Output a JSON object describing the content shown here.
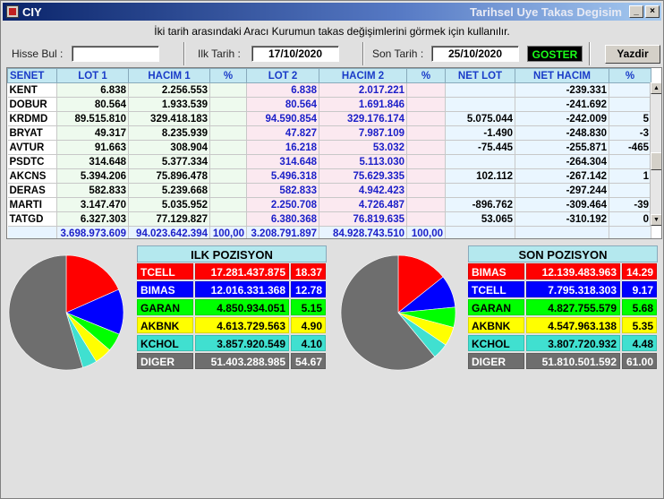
{
  "window": {
    "title": "CIY",
    "subtitle": "Tarihsel Uye Takas Degisim"
  },
  "info": "İki tarih arasındaki  Aracı Kurumun takas değişimlerini görmek için kullanılır.",
  "form": {
    "hisse_label": "Hisse Bul :",
    "hisse_value": "",
    "ilk_label": "Ilk Tarih :",
    "ilk_value": "17/10/2020",
    "son_label": "Son Tarih :",
    "son_value": "25/10/2020",
    "goster": "GOSTER",
    "yazdir": "Yazdir"
  },
  "table": {
    "headers": [
      "SENET",
      "LOT 1",
      "HACIM 1",
      "%",
      "LOT 2",
      "HACIM 2",
      "%",
      "NET LOT",
      "NET HACIM",
      "%"
    ],
    "rows": [
      [
        "KENT",
        "6.838",
        "2.256.553",
        "",
        "6.838",
        "2.017.221",
        "",
        "",
        "-239.331",
        ""
      ],
      [
        "DOBUR",
        "80.564",
        "1.933.539",
        "",
        "80.564",
        "1.691.846",
        "",
        "",
        "-241.692",
        ""
      ],
      [
        "KRDMD",
        "89.515.810",
        "329.418.183",
        "",
        "94.590.854",
        "329.176.174",
        "",
        "5.075.044",
        "-242.009",
        "5"
      ],
      [
        "BRYAT",
        "49.317",
        "8.235.939",
        "",
        "47.827",
        "7.987.109",
        "",
        "-1.490",
        "-248.830",
        "-3"
      ],
      [
        "AVTUR",
        "91.663",
        "308.904",
        "",
        "16.218",
        "53.032",
        "",
        "-75.445",
        "-255.871",
        "-465"
      ],
      [
        "PSDTC",
        "314.648",
        "5.377.334",
        "",
        "314.648",
        "5.113.030",
        "",
        "",
        "-264.304",
        ""
      ],
      [
        "AKCNS",
        "5.394.206",
        "75.896.478",
        "",
        "5.496.318",
        "75.629.335",
        "",
        "102.112",
        "-267.142",
        "1"
      ],
      [
        "DERAS",
        "582.833",
        "5.239.668",
        "",
        "582.833",
        "4.942.423",
        "",
        "",
        "-297.244",
        ""
      ],
      [
        "MARTI",
        "3.147.470",
        "5.035.952",
        "",
        "2.250.708",
        "4.726.487",
        "",
        "-896.762",
        "-309.464",
        "-39"
      ],
      [
        "TATGD",
        "6.327.303",
        "77.129.827",
        "",
        "6.380.368",
        "76.819.635",
        "",
        "53.065",
        "-310.192",
        "0"
      ]
    ],
    "totals": [
      "",
      "3.698.973.609",
      "94.023.642.394",
      "100,00",
      "3.208.791.897",
      "84.928.743.510",
      "100,00",
      "",
      "",
      ""
    ]
  },
  "ilk": {
    "title": "ILK POZISYON",
    "rows": [
      {
        "name": "TCELL",
        "value": "17.281.437.875",
        "pct": "18.37",
        "color": "#ff0000",
        "text": "#ffffff"
      },
      {
        "name": "BIMAS",
        "value": "12.016.331.368",
        "pct": "12.78",
        "color": "#0000ff",
        "text": "#ffffff"
      },
      {
        "name": "GARAN",
        "value": "4.850.934.051",
        "pct": "5.15",
        "color": "#00ff00",
        "text": "#000000"
      },
      {
        "name": "AKBNK",
        "value": "4.613.729.563",
        "pct": "4.90",
        "color": "#ffff00",
        "text": "#000000"
      },
      {
        "name": "KCHOL",
        "value": "3.857.920.549",
        "pct": "4.10",
        "color": "#40e0d0",
        "text": "#000000"
      },
      {
        "name": "DIGER",
        "value": "51.403.288.985",
        "pct": "54.67",
        "color": "#6e6e6e",
        "text": "#ffffff"
      }
    ]
  },
  "son": {
    "title": "SON POZISYON",
    "rows": [
      {
        "name": "BIMAS",
        "value": "12.139.483.963",
        "pct": "14.29",
        "color": "#ff0000",
        "text": "#ffffff"
      },
      {
        "name": "TCELL",
        "value": "7.795.318.303",
        "pct": "9.17",
        "color": "#0000ff",
        "text": "#ffffff"
      },
      {
        "name": "GARAN",
        "value": "4.827.755.579",
        "pct": "5.68",
        "color": "#00ff00",
        "text": "#000000"
      },
      {
        "name": "AKBNK",
        "value": "4.547.963.138",
        "pct": "5.35",
        "color": "#ffff00",
        "text": "#000000"
      },
      {
        "name": "KCHOL",
        "value": "3.807.720.932",
        "pct": "4.48",
        "color": "#40e0d0",
        "text": "#000000"
      },
      {
        "name": "DIGER",
        "value": "51.810.501.592",
        "pct": "61.00",
        "color": "#6e6e6e",
        "text": "#ffffff"
      }
    ]
  },
  "chart_data": [
    {
      "type": "pie",
      "categories": [
        "TCELL",
        "BIMAS",
        "GARAN",
        "AKBNK",
        "KCHOL",
        "DIGER"
      ],
      "values": [
        18.37,
        12.78,
        5.15,
        4.9,
        4.1,
        54.67
      ]
    },
    {
      "type": "pie",
      "categories": [
        "BIMAS",
        "TCELL",
        "GARAN",
        "AKBNK",
        "KCHOL",
        "DIGER"
      ],
      "values": [
        14.29,
        9.17,
        5.68,
        5.35,
        4.48,
        61.0
      ]
    }
  ]
}
